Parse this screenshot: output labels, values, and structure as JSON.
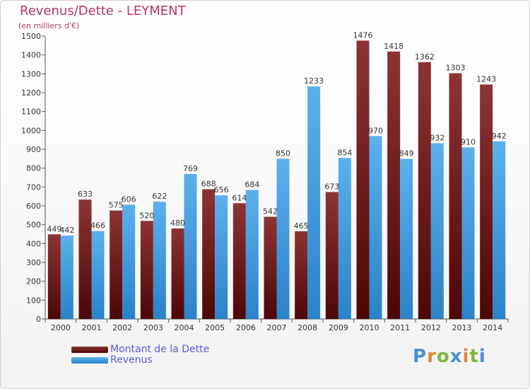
{
  "header": {
    "title": "Revenus/Dette - LEYMENT",
    "subtitle": "(en milliers d'€)"
  },
  "legend": {
    "items": [
      {
        "label": "Montant de la Dette",
        "color": "#7a1f1f"
      },
      {
        "label": "Revenus",
        "color": "#3d9ae0"
      }
    ]
  },
  "logo": {
    "text": "Proxiti"
  },
  "chart_data": {
    "type": "bar",
    "title": "Revenus/Dette - LEYMENT",
    "subtitle": "(en milliers d'€)",
    "xlabel": "",
    "ylabel": "",
    "ylim": [
      0,
      1500
    ],
    "yticks": [
      0,
      100,
      200,
      300,
      400,
      500,
      600,
      700,
      800,
      900,
      1000,
      1100,
      1200,
      1300,
      1400,
      1500
    ],
    "grid": false,
    "legend_position": "bottom-left",
    "categories": [
      "2000",
      "2001",
      "2002",
      "2003",
      "2004",
      "2005",
      "2006",
      "2007",
      "2008",
      "2009",
      "2010",
      "2011",
      "2012",
      "2013",
      "2014"
    ],
    "series": [
      {
        "name": "Montant de la Dette",
        "color": "#7a1f1f",
        "values": [
          449,
          633,
          575,
          520,
          480,
          688,
          614,
          542,
          465,
          673,
          1476,
          1418,
          1362,
          1303,
          1243
        ]
      },
      {
        "name": "Revenus",
        "color": "#3d9ae0",
        "values": [
          442,
          466,
          606,
          622,
          769,
          656,
          684,
          850,
          1233,
          854,
          970,
          849,
          932,
          910,
          942
        ]
      }
    ]
  }
}
